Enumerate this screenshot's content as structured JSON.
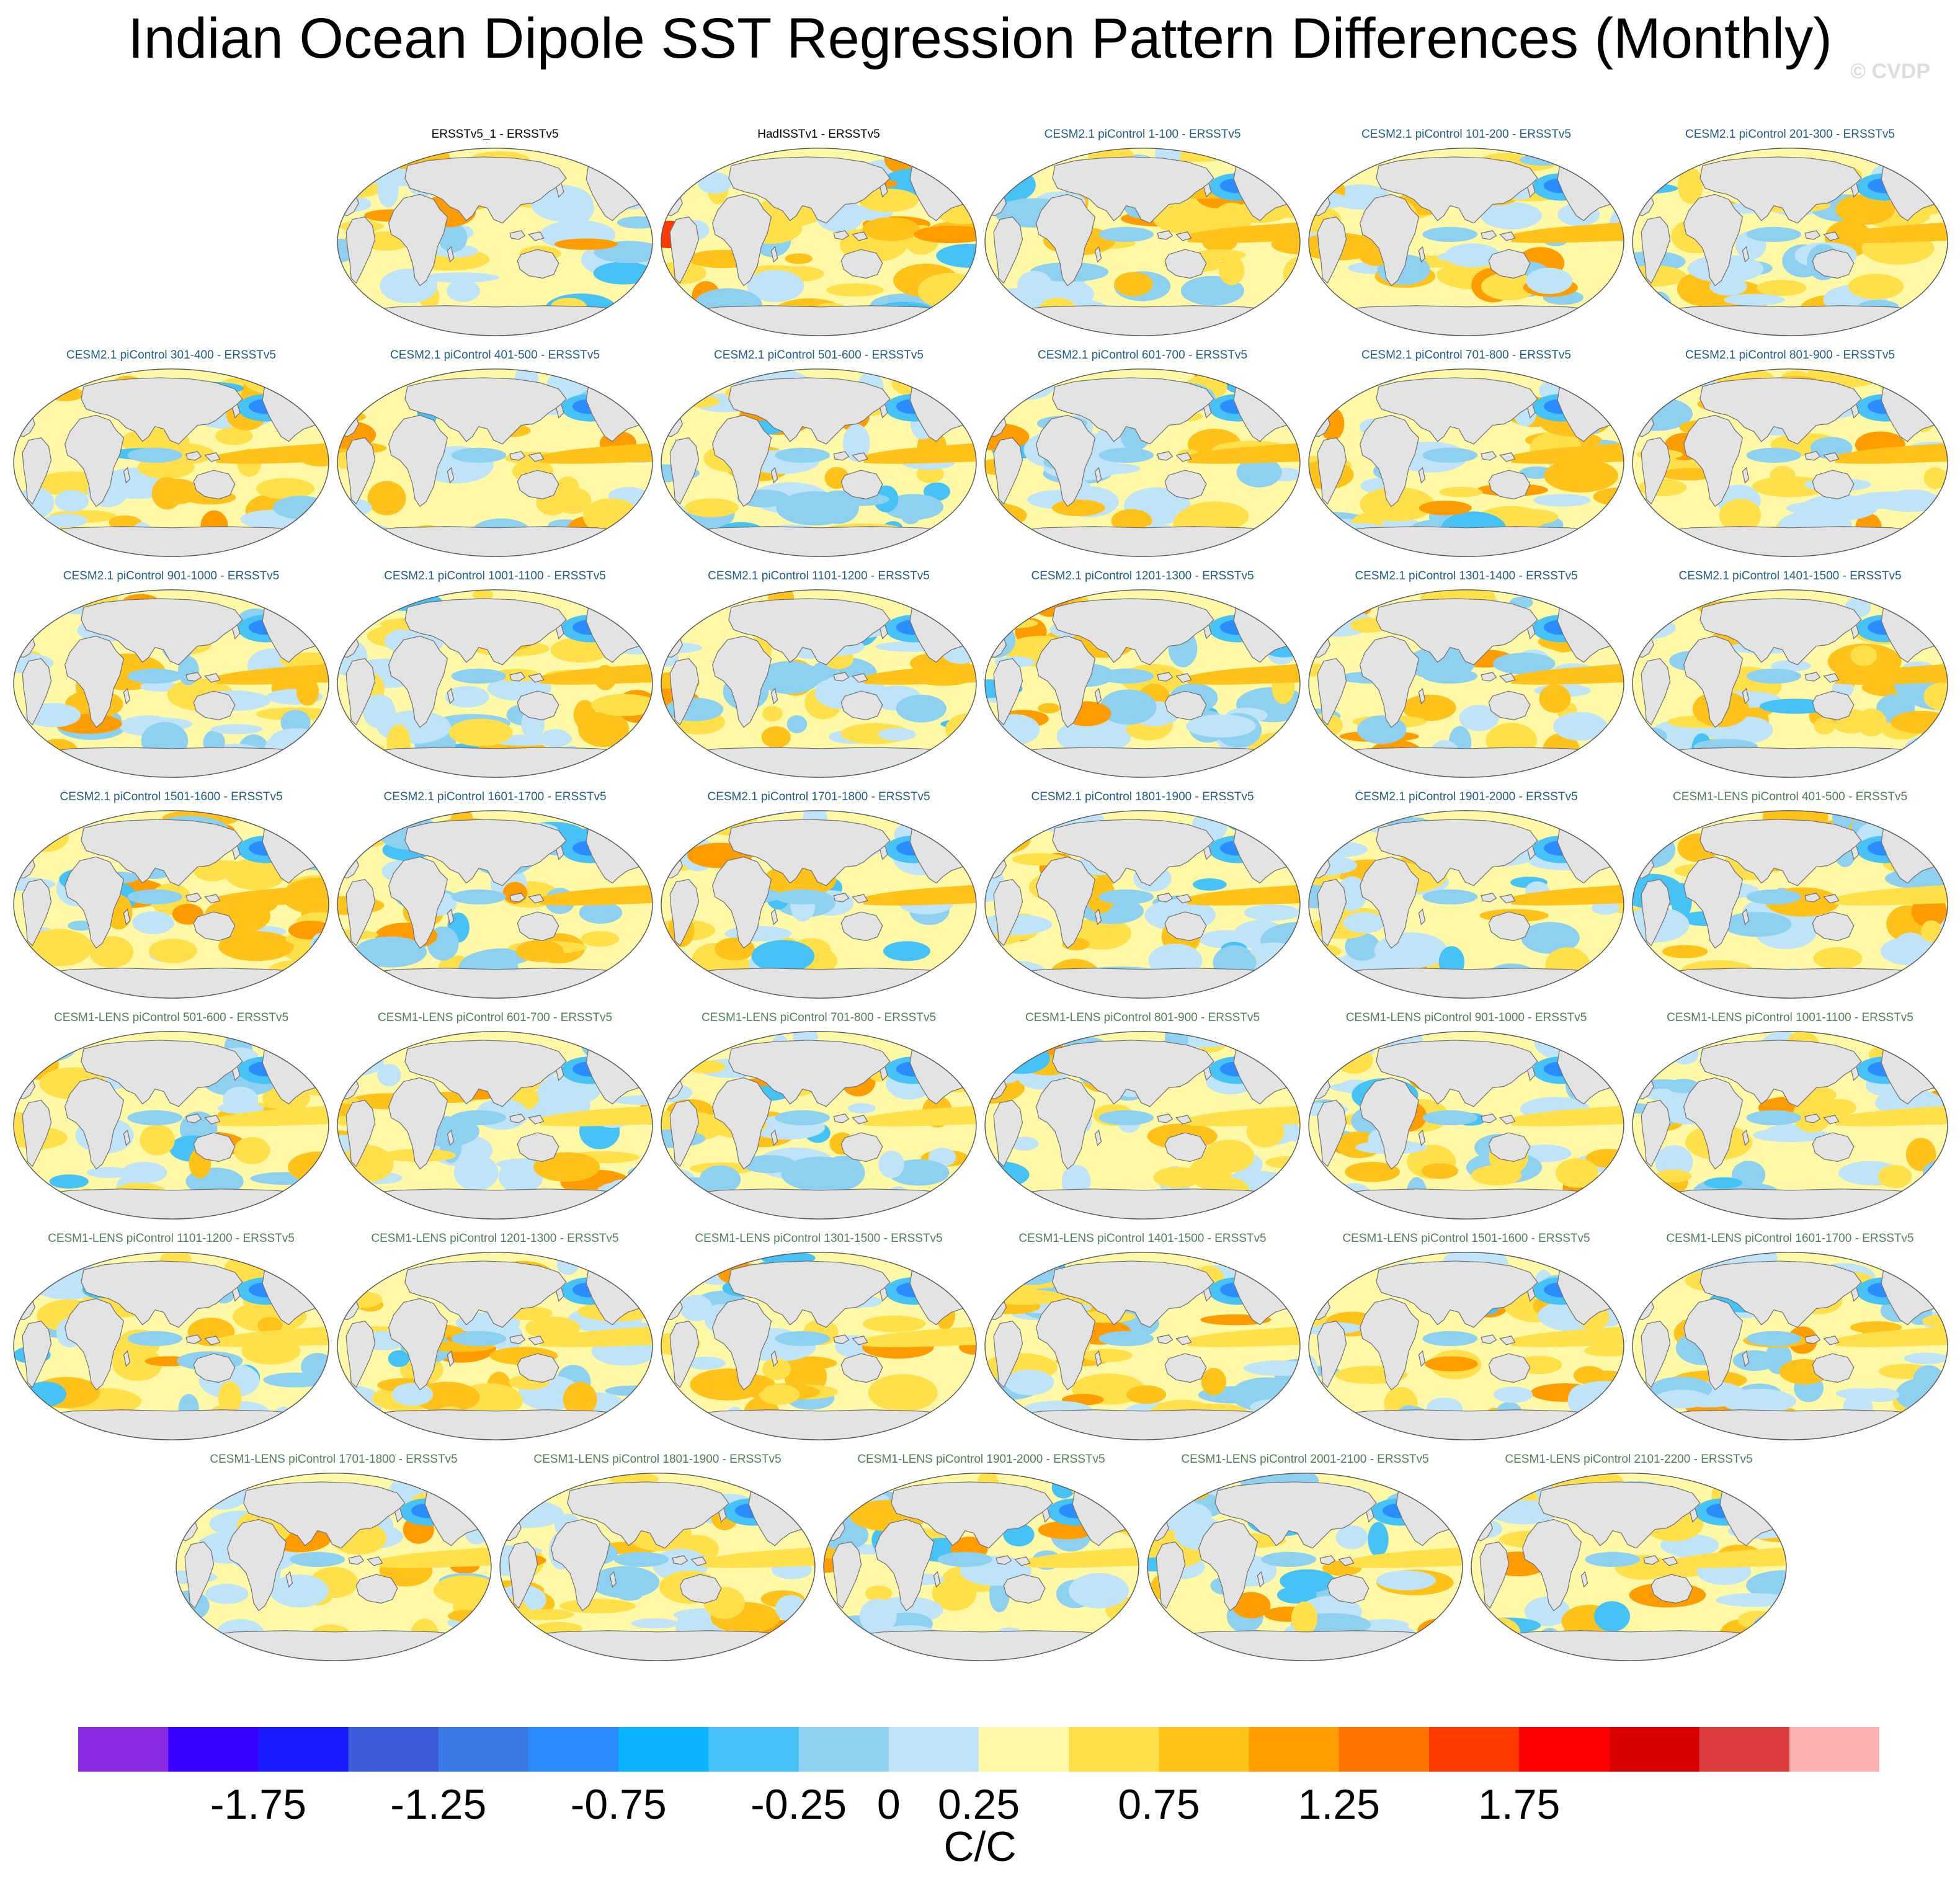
{
  "title": "Indian Ocean Dipole SST Regression Pattern Differences (Monthly)",
  "watermark": "© CVDP",
  "chart_data": {
    "type": "heatmap",
    "projection": "Robinson (global, Pacific-centered at 150E)",
    "variable": "SST regression pattern difference",
    "units": "C/C",
    "panels": [
      {
        "title": "ERSSTv5_1 - ERSSTv5",
        "group": "obs"
      },
      {
        "title": "HadISSTv1 - ERSSTv5",
        "group": "obs"
      },
      {
        "title": "CESM2.1 piControl 1-100 - ERSSTv5",
        "group": "cesm2"
      },
      {
        "title": "CESM2.1 piControl 101-200 - ERSSTv5",
        "group": "cesm2"
      },
      {
        "title": "CESM2.1 piControl 201-300 - ERSSTv5",
        "group": "cesm2"
      },
      {
        "title": "CESM2.1 piControl 301-400 - ERSSTv5",
        "group": "cesm2"
      },
      {
        "title": "CESM2.1 piControl 401-500 - ERSSTv5",
        "group": "cesm2"
      },
      {
        "title": "CESM2.1 piControl 501-600 - ERSSTv5",
        "group": "cesm2"
      },
      {
        "title": "CESM2.1 piControl 601-700 - ERSSTv5",
        "group": "cesm2"
      },
      {
        "title": "CESM2.1 piControl 701-800 - ERSSTv5",
        "group": "cesm2"
      },
      {
        "title": "CESM2.1 piControl 801-900 - ERSSTv5",
        "group": "cesm2"
      },
      {
        "title": "CESM2.1 piControl 901-1000 - ERSSTv5",
        "group": "cesm2"
      },
      {
        "title": "CESM2.1 piControl 1001-1100 - ERSSTv5",
        "group": "cesm2"
      },
      {
        "title": "CESM2.1 piControl 1101-1200 - ERSSTv5",
        "group": "cesm2"
      },
      {
        "title": "CESM2.1 piControl 1201-1300 - ERSSTv5",
        "group": "cesm2"
      },
      {
        "title": "CESM2.1 piControl 1301-1400 - ERSSTv5",
        "group": "cesm2"
      },
      {
        "title": "CESM2.1 piControl 1401-1500 - ERSSTv5",
        "group": "cesm2"
      },
      {
        "title": "CESM2.1 piControl 1501-1600 - ERSSTv5",
        "group": "cesm2"
      },
      {
        "title": "CESM2.1 piControl 1601-1700 - ERSSTv5",
        "group": "cesm2"
      },
      {
        "title": "CESM2.1 piControl 1701-1800 - ERSSTv5",
        "group": "cesm2"
      },
      {
        "title": "CESM2.1 piControl 1801-1900 - ERSSTv5",
        "group": "cesm2"
      },
      {
        "title": "CESM2.1 piControl 1901-2000 - ERSSTv5",
        "group": "cesm2"
      },
      {
        "title": "CESM1-LENS piControl 401-500 - ERSSTv5",
        "group": "cesm1"
      },
      {
        "title": "CESM1-LENS piControl 501-600 - ERSSTv5",
        "group": "cesm1"
      },
      {
        "title": "CESM1-LENS piControl 601-700 - ERSSTv5",
        "group": "cesm1"
      },
      {
        "title": "CESM1-LENS piControl 701-800 - ERSSTv5",
        "group": "cesm1"
      },
      {
        "title": "CESM1-LENS piControl 801-900 - ERSSTv5",
        "group": "cesm1"
      },
      {
        "title": "CESM1-LENS piControl 901-1000 - ERSSTv5",
        "group": "cesm1"
      },
      {
        "title": "CESM1-LENS piControl 1001-1100 - ERSSTv5",
        "group": "cesm1"
      },
      {
        "title": "CESM1-LENS piControl 1101-1200 - ERSSTv5",
        "group": "cesm1"
      },
      {
        "title": "CESM1-LENS piControl 1201-1300 - ERSSTv5",
        "group": "cesm1"
      },
      {
        "title": "CESM1-LENS piControl 1301-1500 - ERSSTv5",
        "group": "cesm1"
      },
      {
        "title": "CESM1-LENS piControl 1401-1500 - ERSSTv5",
        "group": "cesm1"
      },
      {
        "title": "CESM1-LENS piControl 1501-1600 - ERSSTv5",
        "group": "cesm1"
      },
      {
        "title": "CESM1-LENS piControl 1601-1700 - ERSSTv5",
        "group": "cesm1"
      },
      {
        "title": "CESM1-LENS piControl 1701-1800 - ERSSTv5",
        "group": "cesm1"
      },
      {
        "title": "CESM1-LENS piControl 1801-1900 - ERSSTv5",
        "group": "cesm1"
      },
      {
        "title": "CESM1-LENS piControl 1901-2000 - ERSSTv5",
        "group": "cesm1"
      },
      {
        "title": "CESM1-LENS piControl 2001-2100 - ERSSTv5",
        "group": "cesm1"
      },
      {
        "title": "CESM1-LENS piControl 2101-2200 - ERSSTv5",
        "group": "cesm1"
      }
    ],
    "colorbar": {
      "levels": [
        -2.0,
        -1.75,
        -1.5,
        -1.25,
        -1.0,
        -0.75,
        -0.5,
        -0.25,
        0.0,
        0.25,
        0.5,
        0.75,
        1.0,
        1.25,
        1.5,
        1.75,
        2.0
      ],
      "labels": [
        "-1.75",
        "-1.25",
        "-0.75",
        "-0.25",
        "0",
        "0.25",
        "0.75",
        "1.25",
        "1.75"
      ],
      "label_levels": [
        -1.75,
        -1.25,
        -0.75,
        -0.25,
        0.0,
        0.25,
        0.75,
        1.25,
        1.75
      ],
      "colors": [
        "#8a2be2",
        "#3a00ff",
        "#1a1aff",
        "#3b5bdb",
        "#3a78e6",
        "#2b8cff",
        "#0ab4ff",
        "#46c2f6",
        "#8ed0f0",
        "#bfe3f7",
        "#fff8a6",
        "#ffe04a",
        "#ffc21a",
        "#ff9d00",
        "#ff7300",
        "#ff3a00",
        "#ff0000",
        "#d90000",
        "#dc3c3c",
        "#ffb0b0"
      ],
      "units": "C/C"
    },
    "panel_colors": {
      "land": "#e3e3e3",
      "coast": "#6e6e6e",
      "zero_band": "#fff8a6",
      "warm_1": "#ffe04a",
      "warm_2": "#ffc21a",
      "warm_3": "#ff9d00",
      "warm_4": "#ff3a00",
      "cool_1": "#bfe3f7",
      "cool_2": "#8ed0f0",
      "cool_3": "#46c2f6",
      "cool_4": "#2b8cff"
    }
  }
}
